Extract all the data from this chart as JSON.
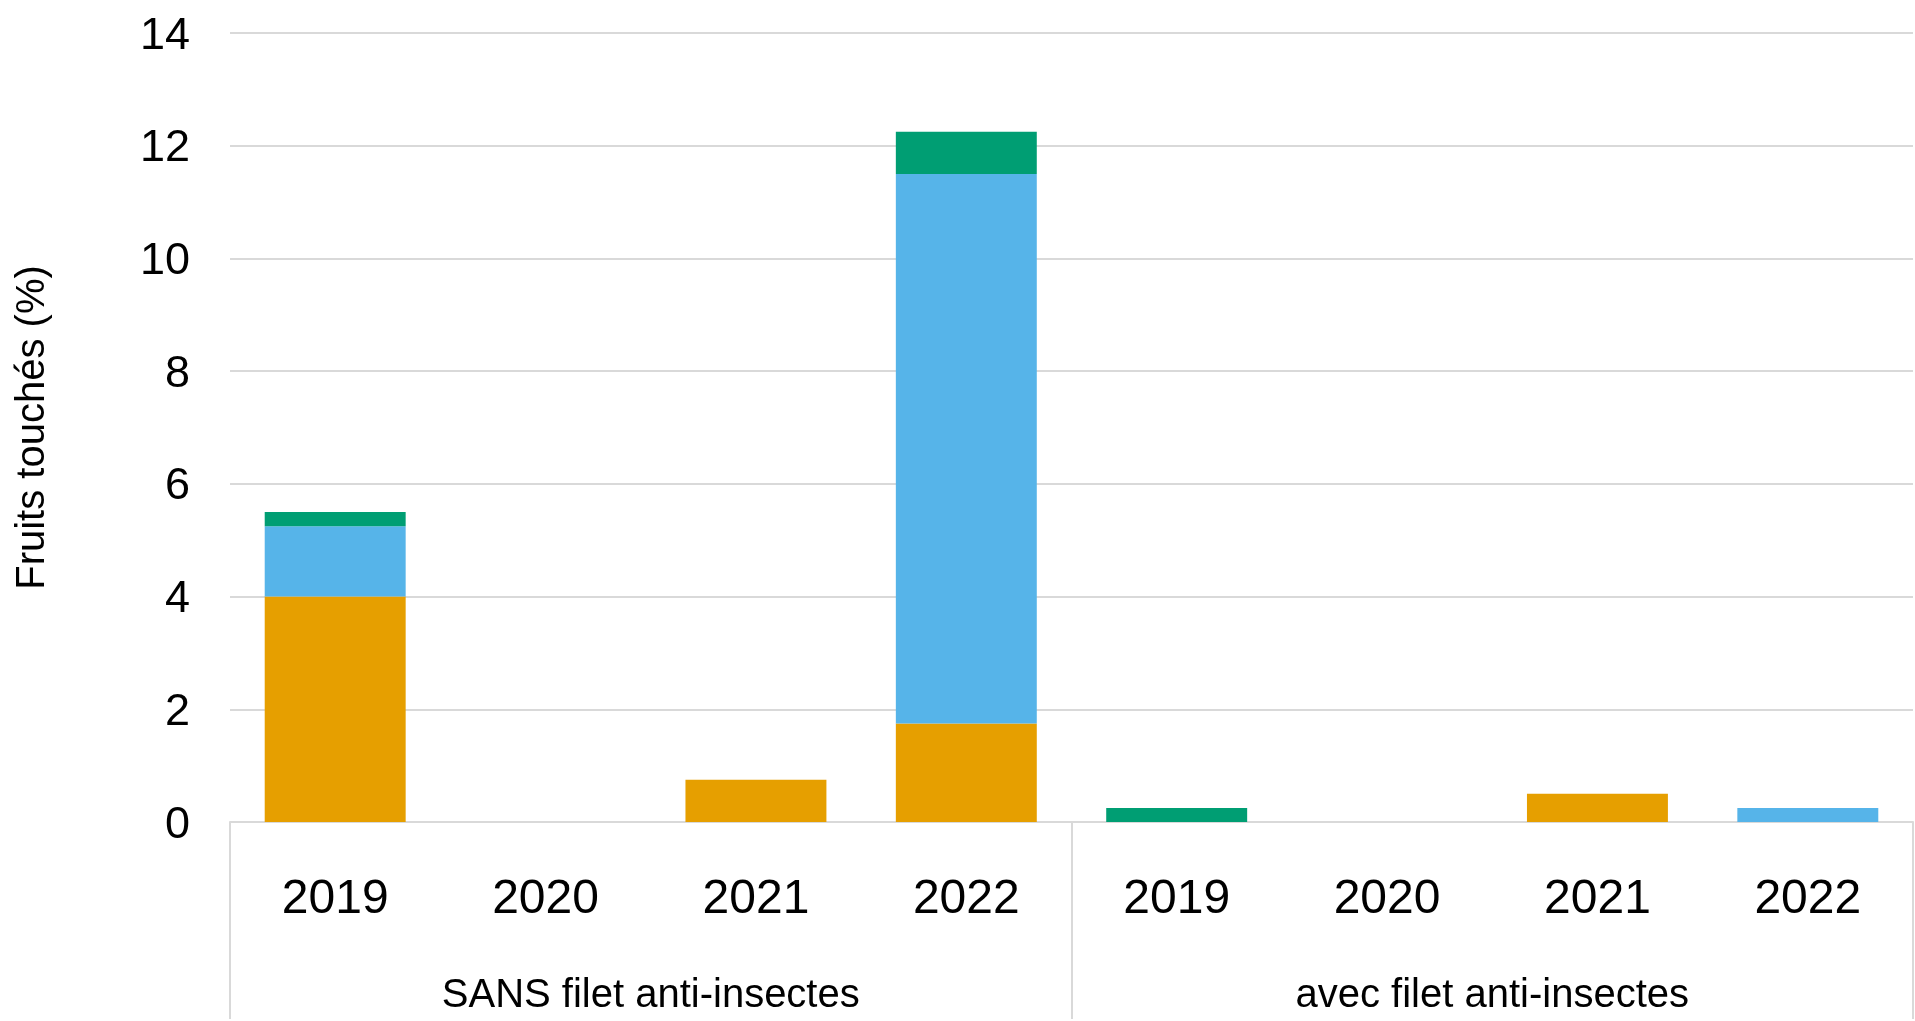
{
  "chart_data": {
    "type": "bar",
    "stacked": true,
    "ylabel": "Fruits touchés (%)",
    "categories": [
      "2019",
      "2020",
      "2021",
      "2022",
      "2019",
      "2020",
      "2021",
      "2022"
    ],
    "series": [
      {
        "color": "#e69f00",
        "values": [
          4,
          null,
          0.75,
          1.75,
          null,
          null,
          0.5,
          null
        ]
      },
      {
        "color": "#56b4e9",
        "values": [
          1.25,
          null,
          null,
          9.75,
          null,
          null,
          null,
          0.25
        ]
      },
      {
        "color": "#009e73",
        "values": [
          0.25,
          null,
          null,
          0.75,
          0.25,
          null,
          null,
          null
        ]
      }
    ],
    "ylim": [
      0,
      14
    ],
    "yticks": [
      0,
      2,
      4,
      6,
      8,
      10,
      12,
      14
    ],
    "grid": "y",
    "annotations": [
      "SANS filet anti-insectes",
      "avec filet anti-insectes"
    ]
  }
}
